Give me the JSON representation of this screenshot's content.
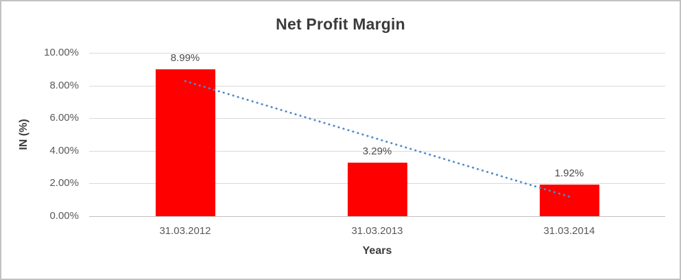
{
  "chart_data": {
    "type": "bar",
    "title": "Net Profit Margin",
    "categories": [
      "31.03.2012",
      "31.03.2013",
      "31.03.2014"
    ],
    "values": [
      8.99,
      3.29,
      1.92
    ],
    "data_labels": [
      "8.99%",
      "3.29%",
      "1.92%"
    ],
    "xlabel": "Years",
    "ylabel": "IN (%)",
    "ylim": [
      0,
      10
    ],
    "ytick_labels": [
      "0.00%",
      "2.00%",
      "4.00%",
      "6.00%",
      "8.00%",
      "10.00%"
    ],
    "grid": true,
    "legend": "none",
    "bar_color": "#FF0000",
    "trendline": {
      "type": "linear",
      "style": "dotted",
      "color": "#4F8BC9",
      "start_value": 8.27,
      "end_value": 1.2
    }
  }
}
